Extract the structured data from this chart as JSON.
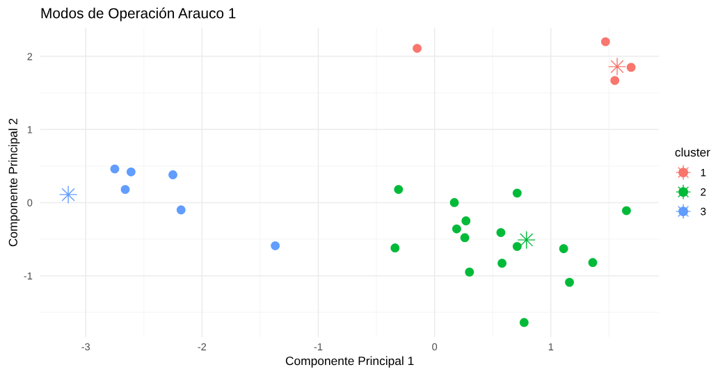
{
  "chart_data": {
    "type": "scatter",
    "title": "Modos de Operación Arauco 1",
    "xlabel": "Componente Principal 1",
    "ylabel": "Componente Principal 2",
    "legend_title": "cluster",
    "legend": "right",
    "grid": true,
    "marker": "circle",
    "xlim": [
      -3.39,
      1.93
    ],
    "ylim": [
      -1.84,
      2.39
    ],
    "xticks": [
      -3,
      {
        "value": -2.5,
        "label": null
      },
      -2,
      {
        "value": -1.5,
        "label": null
      },
      -1,
      {
        "value": -0.5,
        "label": null
      },
      0,
      {
        "value": 0.5,
        "label": null
      },
      1,
      {
        "value": 1.5,
        "label": null
      }
    ],
    "yticks": [
      {
        "value": -1.5,
        "label": null
      },
      -1,
      {
        "value": -0.5,
        "label": null
      },
      0,
      {
        "value": 0.5,
        "label": null
      },
      1,
      {
        "value": 1.5,
        "label": null
      },
      2
    ],
    "series": [
      {
        "name": "1",
        "color": "#f8766d",
        "x": [
          -0.15,
          1.47,
          1.69,
          1.55
        ],
        "values": [
          2.11,
          2.2,
          1.85,
          1.67
        ]
      },
      {
        "name": "2",
        "color": "#00ba38",
        "x": [
          -0.31,
          -0.34,
          0.17,
          0.27,
          0.19,
          0.26,
          0.3,
          0.57,
          0.58,
          0.71,
          0.71,
          0.77,
          1.11,
          1.16,
          1.36,
          1.65
        ],
        "values": [
          0.18,
          -0.62,
          0.0,
          -0.25,
          -0.36,
          -0.48,
          -0.95,
          -0.41,
          -0.83,
          0.13,
          -0.6,
          -1.64,
          -0.63,
          -1.09,
          -0.82,
          -0.11
        ]
      },
      {
        "name": "3",
        "color": "#619cff",
        "x": [
          -2.75,
          -2.61,
          -2.66,
          -2.25,
          -2.18,
          -1.37
        ],
        "values": [
          0.46,
          0.42,
          0.18,
          0.38,
          -0.1,
          -0.59
        ]
      },
      {
        "color": "#f8766d",
        "marker": "star",
        "x": [
          1.57
        ],
        "values": [
          1.86
        ]
      },
      {
        "color": "#00ba38",
        "marker": "star",
        "x": [
          0.79
        ],
        "values": [
          -0.51
        ]
      },
      {
        "color": "#619cff",
        "marker": "star",
        "x": [
          -3.15
        ],
        "values": [
          0.11
        ]
      }
    ]
  }
}
